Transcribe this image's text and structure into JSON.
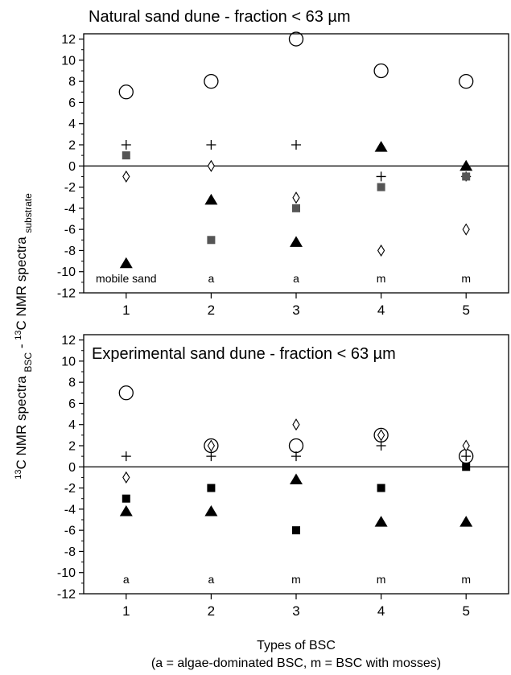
{
  "chart_data": [
    {
      "type": "scatter",
      "title": "Natural sand dune - fraction < 63 µm",
      "x": [
        1,
        2,
        3,
        4,
        5
      ],
      "xlim": [
        0.5,
        5.5
      ],
      "ylim": [
        -12,
        12.5
      ],
      "yticks": [
        -12,
        -10,
        -8,
        -6,
        -4,
        -2,
        0,
        2,
        4,
        6,
        8,
        10,
        12
      ],
      "xticks": [
        1,
        2,
        3,
        4,
        5
      ],
      "series": [
        {
          "marker": "open-circle",
          "values": [
            7,
            8,
            12,
            9,
            8
          ]
        },
        {
          "marker": "plus",
          "values": [
            2,
            2,
            2,
            -1,
            -1
          ]
        },
        {
          "marker": "filled-square",
          "color": "#555555",
          "values": [
            1,
            -7,
            -4,
            -2,
            -1
          ]
        },
        {
          "marker": "open-diamond",
          "values": [
            -1,
            0,
            -3,
            -8,
            -6
          ]
        },
        {
          "marker": "filled-triangle",
          "values": [
            -9.2,
            -3.2,
            -7.2,
            1.8,
            0
          ]
        }
      ],
      "point_labels": [
        "mobile sand",
        "a",
        "a",
        "m",
        "m"
      ],
      "zero_line": true
    },
    {
      "type": "scatter",
      "title": "Experimental sand dune - fraction < 63 µm",
      "x": [
        1,
        2,
        3,
        4,
        5
      ],
      "xlim": [
        0.5,
        5.5
      ],
      "ylim": [
        -12,
        12.5
      ],
      "yticks": [
        -12,
        -10,
        -8,
        -6,
        -4,
        -2,
        0,
        2,
        4,
        6,
        8,
        10,
        12
      ],
      "xticks": [
        1,
        2,
        3,
        4,
        5
      ],
      "series": [
        {
          "marker": "open-circle",
          "values": [
            7,
            2,
            2,
            3,
            1
          ]
        },
        {
          "marker": "plus",
          "values": [
            1,
            1,
            1,
            2,
            1
          ]
        },
        {
          "marker": "filled-square",
          "color": "#000000",
          "values": [
            -3,
            -2,
            -6,
            -2,
            0
          ]
        },
        {
          "marker": "open-diamond",
          "values": [
            -1,
            2,
            4,
            3,
            2
          ]
        },
        {
          "marker": "filled-triangle",
          "values": [
            -4.2,
            -4.2,
            -1.2,
            -5.2,
            -5.2
          ]
        }
      ],
      "point_labels": [
        "a",
        "a",
        "m",
        "m",
        "m"
      ],
      "zero_line": true
    }
  ],
  "ylabel": {
    "sup": "13",
    "main": "C NMR spectra ",
    "sub1": "BSC",
    "mid": " - ",
    "sup2": "13",
    "main2": "C NMR spectra ",
    "sub2": "substrate"
  },
  "xlabel": "Types of BSC",
  "xlabel_note": "(a = algae-dominated BSC, m = BSC with mosses)"
}
